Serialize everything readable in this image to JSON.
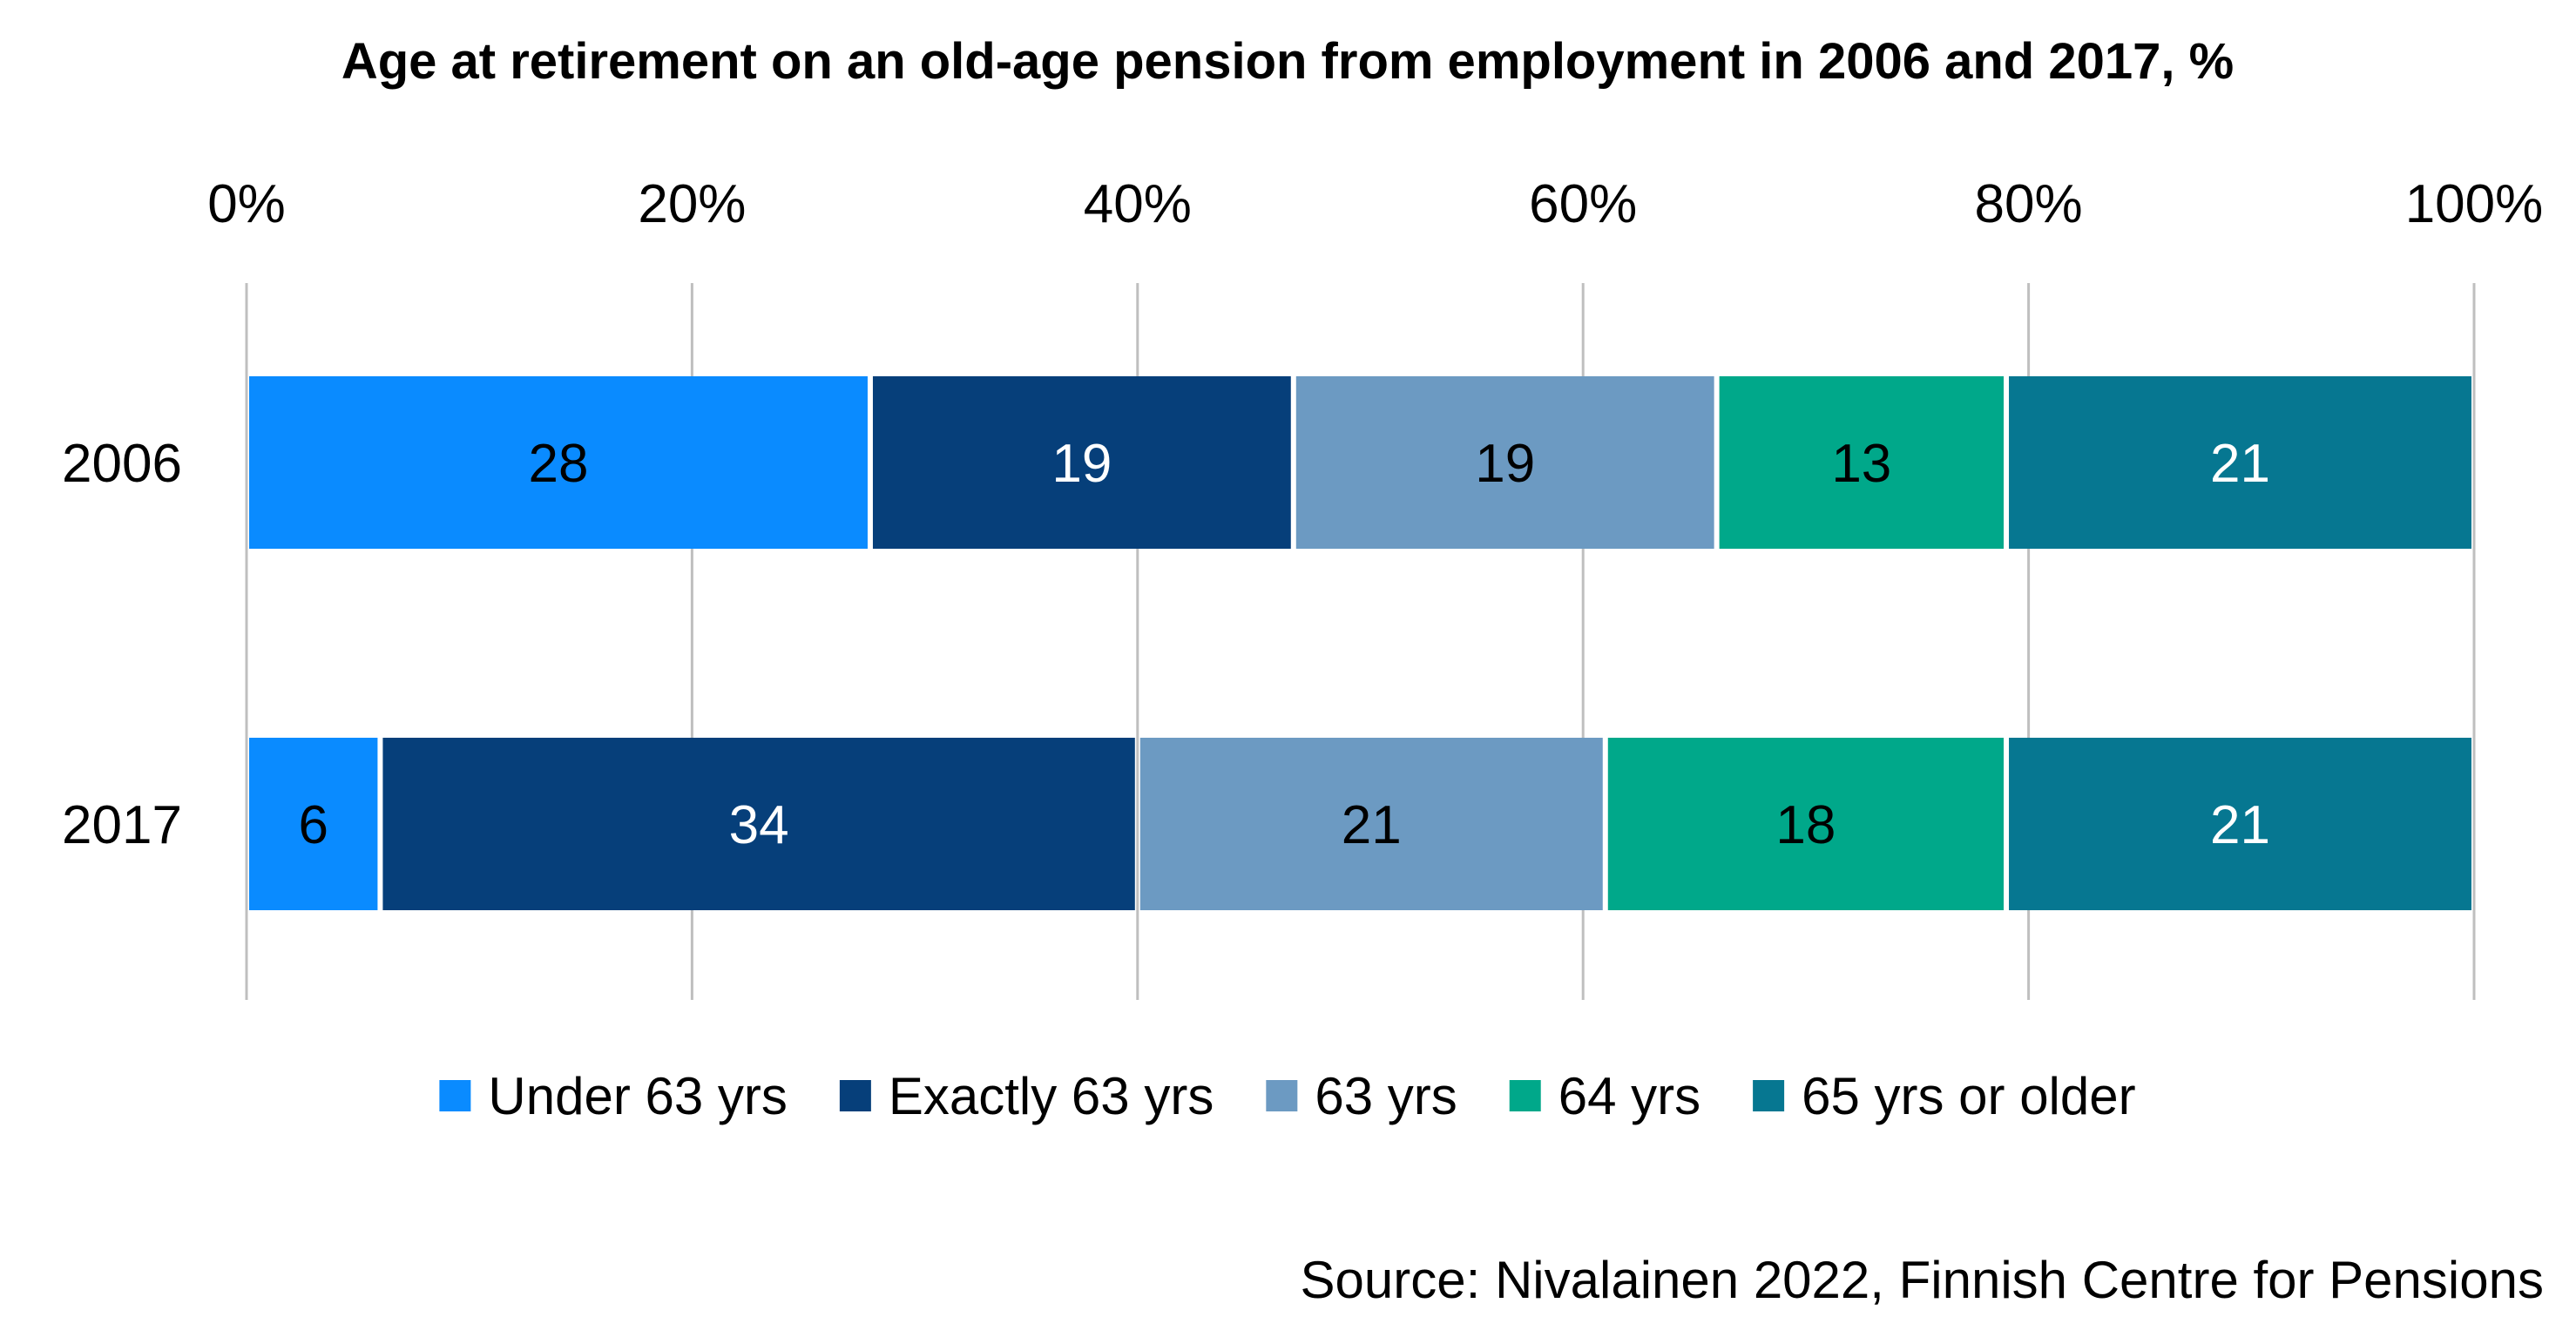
{
  "chart_data": {
    "type": "bar",
    "orientation": "horizontal",
    "stacked": "percent",
    "title": "Age at retirement on an old-age pension from employment in 2006 and 2017, %",
    "categories": [
      "2006",
      "2017"
    ],
    "series": [
      {
        "name": "Under 63 yrs",
        "values": [
          28,
          6
        ],
        "color": "#0A8BFF",
        "label_color": "#000000"
      },
      {
        "name": "Exactly 63 yrs",
        "values": [
          19,
          34
        ],
        "color": "#063F7A",
        "label_color": "#FFFFFF"
      },
      {
        "name": "63 yrs",
        "values": [
          19,
          21
        ],
        "color": "#6C9AC2",
        "label_color": "#000000"
      },
      {
        "name": "64 yrs",
        "values": [
          13,
          18
        ],
        "color": "#00A88A",
        "label_color": "#000000"
      },
      {
        "name": "65 yrs or older",
        "values": [
          21,
          21
        ],
        "color": "#067791",
        "label_color": "#FFFFFF"
      }
    ],
    "x_ticks": [
      "0%",
      "20%",
      "40%",
      "60%",
      "80%",
      "100%"
    ],
    "xlim": [
      0,
      100
    ],
    "x_axis_position": "top",
    "grid": true,
    "legend": "bottom",
    "source": "Source: Nivalainen 2022, Finnish Centre for Pensions"
  }
}
